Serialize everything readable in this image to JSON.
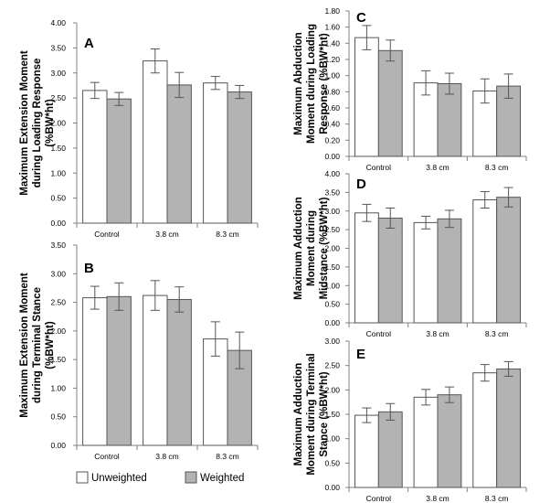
{
  "colors": {
    "unweighted": "#ffffff",
    "weighted": "#b3b3b3",
    "edge": "#555555",
    "axis": "#808080"
  },
  "legend": {
    "items": [
      "Unweighted",
      "Weighted"
    ]
  },
  "chart_data": [
    {
      "id": "A",
      "type": "bar",
      "panel_label": "A",
      "categories": [
        "Control",
        "3.8 cm",
        "8.3 cm"
      ],
      "ylabel": [
        "Maximum Extension Moment",
        "during Loading Response",
        "(%BW*ht)"
      ],
      "ylim": [
        0,
        4
      ],
      "yticks": [
        "0.00",
        "0.50",
        "1.00",
        "1.50",
        "2.00",
        "2.50",
        "3.00",
        "3.50",
        "4.00"
      ],
      "series": [
        {
          "name": "Unweighted",
          "values": [
            2.65,
            3.24,
            2.8
          ],
          "errors": [
            0.16,
            0.24,
            0.13
          ]
        },
        {
          "name": "Weighted",
          "values": [
            2.48,
            2.76,
            2.62
          ],
          "errors": [
            0.13,
            0.25,
            0.13
          ]
        }
      ]
    },
    {
      "id": "B",
      "type": "bar",
      "panel_label": "B",
      "categories": [
        "Control",
        "3.8 cm",
        "8.3 cm"
      ],
      "ylabel": [
        "Maximum Extension Moment",
        "during Terminal Stance",
        "(%BW*ht)"
      ],
      "ylim": [
        0,
        3.5
      ],
      "yticks": [
        "0.00",
        "0.50",
        "1.00",
        "1.50",
        "2.00",
        "2.50",
        "3.00",
        "3.50"
      ],
      "series": [
        {
          "name": "Unweighted",
          "values": [
            2.58,
            2.62,
            1.86
          ],
          "errors": [
            0.2,
            0.26,
            0.3
          ]
        },
        {
          "name": "Weighted",
          "values": [
            2.6,
            2.55,
            1.66
          ],
          "errors": [
            0.24,
            0.22,
            0.32
          ]
        }
      ]
    },
    {
      "id": "C",
      "type": "bar",
      "panel_label": "C",
      "categories": [
        "Control",
        "3.8 cm",
        "8.3 cm"
      ],
      "ylabel": [
        "Maximum Abduction",
        "Moment during Loading",
        "Response (%BW*ht)"
      ],
      "ylim": [
        0,
        1.8
      ],
      "yticks": [
        "0.00",
        "0.20",
        "0.40",
        "0.60",
        "0.80",
        "1.00",
        "1.20",
        "1.40",
        "1.60",
        "1.80"
      ],
      "series": [
        {
          "name": "Unweighted",
          "values": [
            1.47,
            0.91,
            0.81
          ],
          "errors": [
            0.15,
            0.15,
            0.15
          ]
        },
        {
          "name": "Weighted",
          "values": [
            1.31,
            0.9,
            0.87
          ],
          "errors": [
            0.13,
            0.13,
            0.15
          ]
        }
      ]
    },
    {
      "id": "D",
      "type": "bar",
      "panel_label": "D",
      "categories": [
        "Control",
        "3.8 cm",
        "8.3 cm"
      ],
      "ylabel": [
        "Maximum Adduction",
        "Moment during",
        "Midstance (%BW*ht)"
      ],
      "ylim": [
        0,
        4
      ],
      "yticks": [
        "0.00",
        "0.50",
        "1.00",
        "1.50",
        "2.00",
        "2.50",
        "3.00",
        "3.50",
        "4.00"
      ],
      "series": [
        {
          "name": "Unweighted",
          "values": [
            2.95,
            2.69,
            3.3
          ],
          "errors": [
            0.23,
            0.17,
            0.22
          ]
        },
        {
          "name": "Weighted",
          "values": [
            2.81,
            2.79,
            3.37
          ],
          "errors": [
            0.27,
            0.23,
            0.26
          ]
        }
      ]
    },
    {
      "id": "E",
      "type": "bar",
      "panel_label": "E",
      "categories": [
        "Control",
        "3.8 cm",
        "8.3 cm"
      ],
      "ylabel": [
        "Maximum Adduction",
        "Moment during Terminal",
        "Stance (%BW*ht)"
      ],
      "ylim": [
        0,
        3
      ],
      "yticks": [
        "0.00",
        "0.50",
        "1.00",
        "1.50",
        "2.00",
        "2.50",
        "3.00"
      ],
      "series": [
        {
          "name": "Unweighted",
          "values": [
            1.48,
            1.85,
            2.35
          ],
          "errors": [
            0.15,
            0.16,
            0.17
          ]
        },
        {
          "name": "Weighted",
          "values": [
            1.55,
            1.9,
            2.43
          ],
          "errors": [
            0.17,
            0.16,
            0.15
          ]
        }
      ]
    }
  ]
}
